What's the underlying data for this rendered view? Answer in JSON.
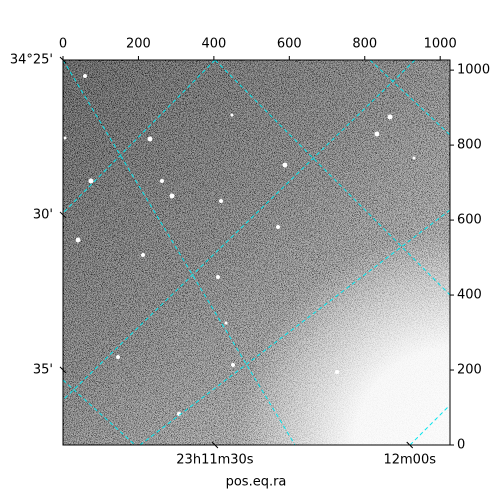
{
  "chart_data": {
    "type": "image",
    "xlabel": "pos.eq.ra",
    "xlim": [
      0,
      1026
    ],
    "xticks": [
      0,
      200,
      400,
      600,
      800,
      1000
    ],
    "ylim": [
      0,
      1027
    ],
    "yticks": [
      0,
      200,
      400,
      600,
      800,
      1000
    ],
    "dec_lim": [
      34.4167,
      34.6237
    ],
    "dec_ticks": [
      {
        "value": 34.4167,
        "label": "34°25'"
      },
      {
        "value": 34.5,
        "label": "30'"
      },
      {
        "value": 34.5833,
        "label": "35'"
      }
    ],
    "ra_lim": [
      666.6,
      726.2
    ],
    "ra_ticks": [
      {
        "value": 690,
        "label": "23h11m30s"
      },
      {
        "value": 720,
        "label": "12m00s"
      }
    ]
  }
}
